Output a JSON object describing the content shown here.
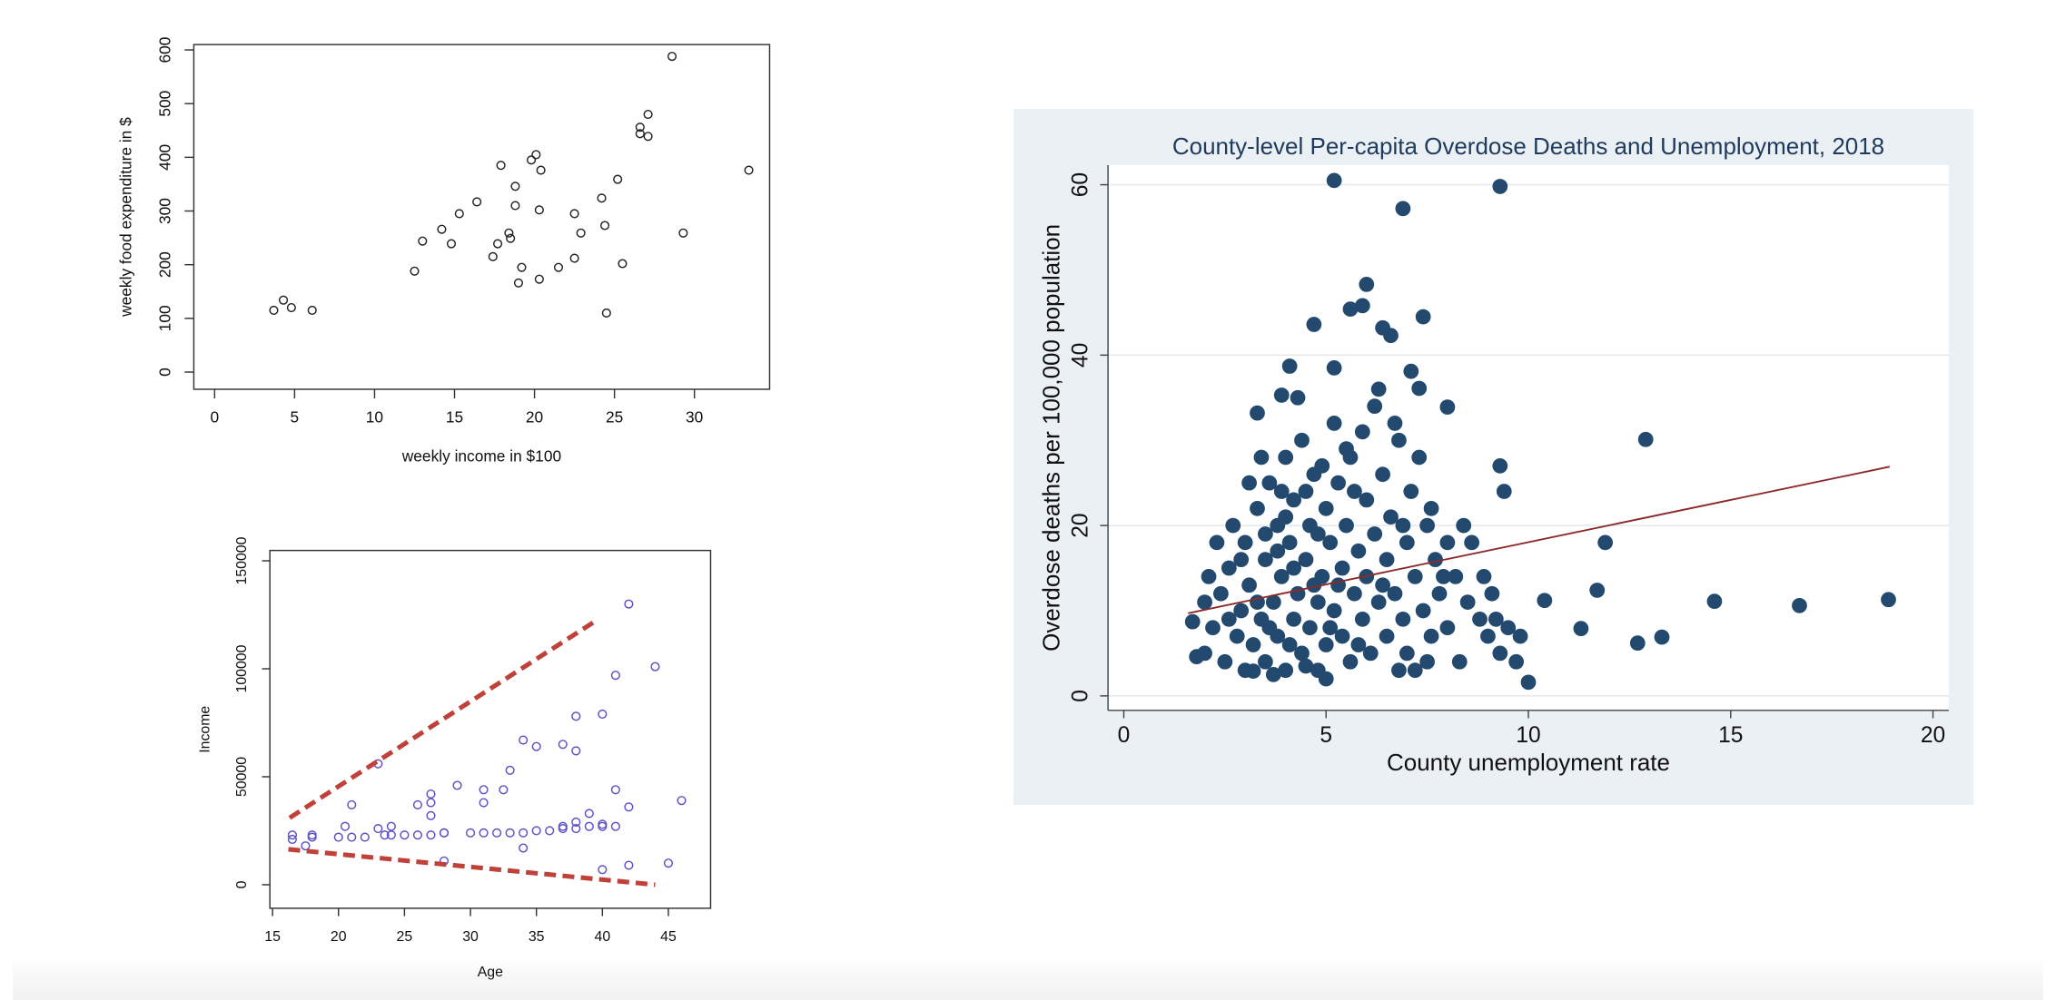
{
  "chart_data": [
    {
      "type": "scatter",
      "x_label": "weekly income in $100",
      "y_label": "weekly food expenditure in $",
      "xlim": [
        -1.3,
        34.7
      ],
      "ylim": [
        -32,
        610
      ],
      "xticks": [
        0,
        5,
        10,
        15,
        20,
        25,
        30
      ],
      "yticks": [
        0,
        100,
        200,
        300,
        400,
        500,
        600
      ],
      "grid": false,
      "series": [
        {
          "kind": "points",
          "filled": false,
          "color": "#222222",
          "x": [
            3.7,
            4.3,
            4.8,
            6.1,
            12.5,
            13.0,
            14.2,
            14.8,
            15.3,
            16.4,
            17.4,
            17.7,
            17.9,
            18.4,
            18.5,
            18.8,
            18.8,
            19.0,
            19.2,
            19.8,
            20.1,
            20.3,
            20.3,
            20.4,
            21.5,
            22.5,
            22.5,
            22.9,
            24.2,
            24.4,
            24.5,
            25.2,
            25.5,
            26.6,
            26.6,
            27.1,
            27.1,
            28.6,
            29.3,
            33.4
          ],
          "values": [
            115,
            134,
            120,
            115,
            188,
            244,
            266,
            239,
            295,
            317,
            215,
            239,
            385,
            259,
            249,
            310,
            346,
            166,
            195,
            395,
            405,
            173,
            302,
            376,
            195,
            212,
            295,
            259,
            324,
            273,
            110,
            359,
            202,
            456,
            444,
            480,
            439,
            588,
            259,
            376
          ]
        }
      ]
    },
    {
      "type": "scatter",
      "x_label": "Age",
      "y_label": "Income",
      "xlim": [
        14.8,
        48.2
      ],
      "ylim": [
        -10900,
        154800
      ],
      "xticks": [
        15,
        20,
        25,
        30,
        35,
        40,
        45
      ],
      "yticks": [
        0,
        50000,
        100000,
        150000
      ],
      "grid": false,
      "series": [
        {
          "kind": "points",
          "filled": false,
          "color": "#5b50c8",
          "x": [
            16.5,
            16.5,
            17.5,
            18,
            18,
            20,
            20.5,
            21,
            21,
            22,
            23,
            23,
            23.5,
            24,
            24,
            25,
            26,
            26,
            27,
            27,
            27,
            27,
            28,
            28,
            28,
            29,
            30,
            31,
            31,
            31,
            32,
            32.5,
            33,
            33,
            34,
            34,
            34,
            35,
            35,
            36,
            37,
            37,
            37,
            38,
            38,
            38,
            38,
            39,
            39,
            40,
            40,
            40,
            40,
            41,
            41,
            41,
            42,
            42,
            42,
            44,
            45,
            46
          ],
          "values": [
            21000,
            23000,
            18000,
            22000,
            23000,
            22000,
            27000,
            22000,
            37000,
            22000,
            26000,
            56000,
            23000,
            23000,
            27000,
            23000,
            23000,
            37000,
            23000,
            32000,
            42000,
            38000,
            24000,
            24000,
            11000,
            46000,
            24000,
            24000,
            38000,
            44000,
            24000,
            44000,
            24000,
            53000,
            24000,
            17000,
            67000,
            25000,
            64000,
            25000,
            26000,
            27000,
            65000,
            26000,
            29000,
            62000,
            78000,
            27000,
            33000,
            27000,
            28000,
            7000,
            79000,
            27000,
            44000,
            97000,
            36000,
            9000,
            130000,
            101000,
            10000,
            39000
          ]
        },
        {
          "kind": "line",
          "dashed": true,
          "color": "#c0403a",
          "x": [
            16.3,
            39.7
          ],
          "values": [
            31000,
            123000
          ]
        },
        {
          "kind": "line",
          "dashed": true,
          "color": "#c0403a",
          "x": [
            16.2,
            44.0
          ],
          "values": [
            16400,
            0
          ]
        }
      ]
    },
    {
      "type": "scatter",
      "title": "County-level Per-capita Overdose Deaths and Unemployment, 2018",
      "x_label": "County unemployment rate",
      "y_label": "Overdose deaths per 100,000 population",
      "xlim": [
        -0.39,
        20.39
      ],
      "ylim": [
        -1.7,
        62.3
      ],
      "xticks": [
        0,
        5,
        10,
        15,
        20
      ],
      "yticks": [
        0,
        20,
        40,
        60
      ],
      "grid": true,
      "series": [
        {
          "kind": "points",
          "filled": true,
          "color": "#234a6e",
          "x": [
            5.2,
            6.9,
            9.3,
            6.0,
            12.9,
            9.3,
            9.4,
            11.9,
            11.7,
            10.4,
            14.6,
            16.7,
            18.9,
            12.7,
            13.3,
            11.3,
            10.0,
            4.7,
            7.4,
            5.6,
            6.4,
            5.9,
            4.1,
            5.2,
            7.1,
            8.0,
            3.3,
            3.9,
            7.3,
            6.6,
            2,
            2.2,
            2.4,
            2.5,
            2.6,
            2.8,
            2.9,
            3,
            3,
            3.1,
            3.2,
            3.3,
            3.4,
            3.5,
            3.5,
            3.6,
            3.7,
            3.8,
            3.8,
            3.9,
            4,
            4,
            4.1,
            4.2,
            4.2,
            4.3,
            4.4,
            4.4,
            4.5,
            4.6,
            4.6,
            4.7,
            4.8,
            4.8,
            4.9,
            5,
            5,
            5.1,
            5.2,
            5.2,
            5.3,
            5.4,
            5.4,
            5.5,
            5.6,
            5.6,
            5.7,
            5.8,
            5.9,
            6,
            6,
            6.1,
            6.2,
            6.2,
            6.3,
            6.4,
            6.5,
            6.5,
            6.6,
            6.7,
            6.8,
            6.9,
            7,
            7,
            7.1,
            7.2,
            7.3,
            7.4,
            7.5,
            7.6,
            7.7,
            7.8,
            8,
            8,
            8.2,
            8.3,
            8.5,
            8.6,
            8.8,
            9,
            9.1,
            9.3,
            9.5,
            9.7,
            9.8,
            1.7,
            1.8,
            2,
            2.1,
            2.3,
            2.7,
            3.1,
            3.4,
            3.2,
            3.7,
            4.3,
            4.5,
            5,
            5.5,
            5.9,
            6.3,
            6.7,
            7.2,
            7.6,
            3.5,
            4,
            4.5,
            3.8,
            4.2,
            4.8,
            5.3,
            2.6,
            3.3,
            3.6,
            4.1,
            4.7,
            5.1,
            5.8,
            6.4,
            2.9,
            3.9,
            4.9,
            5.7,
            6.9,
            7.9,
            8.4,
            8.9,
            9.2,
            7.5,
            6.8
          ],
          "values": [
            60.5,
            57.2,
            59.8,
            48.3,
            30.1,
            27,
            24,
            18,
            12.4,
            11.2,
            11.1,
            10.6,
            11.3,
            6.2,
            6.9,
            7.9,
            1.6,
            43.6,
            44.5,
            45.4,
            43.2,
            45.8,
            38.7,
            38.5,
            38.1,
            33.9,
            33.2,
            35.3,
            36.1,
            42.3,
            5,
            8,
            12,
            4,
            15,
            7,
            10,
            3,
            18,
            13,
            6,
            22,
            9,
            16,
            4,
            25,
            11,
            20,
            7,
            14,
            3,
            28,
            18,
            9,
            23,
            12,
            5,
            30,
            16,
            20,
            8,
            26,
            11,
            3,
            14,
            22,
            6,
            18,
            10,
            32,
            25,
            7,
            15,
            20,
            4,
            28,
            12,
            17,
            9,
            23,
            14,
            5,
            34,
            19,
            11,
            26,
            7,
            16,
            21,
            12,
            30,
            9,
            18,
            5,
            24,
            14,
            28,
            10,
            20,
            7,
            16,
            12,
            18,
            8,
            14,
            4,
            11,
            18,
            9,
            7,
            12,
            5,
            8,
            4,
            7,
            8.7,
            4.6,
            11,
            14,
            18,
            20,
            25,
            28,
            2.9,
            2.5,
            35,
            3.5,
            2,
            29,
            31,
            36,
            32,
            3,
            22,
            19,
            21,
            24,
            17,
            15,
            19,
            13,
            9,
            11,
            8,
            6,
            13,
            8,
            6,
            13,
            16,
            24,
            27,
            24,
            20,
            14,
            20,
            14,
            9,
            4,
            3
          ]
        },
        {
          "kind": "line",
          "dashed": false,
          "color": "#8b2a2a",
          "x": [
            1.59,
            18.93
          ],
          "values": [
            9.7,
            26.9
          ]
        }
      ]
    }
  ]
}
